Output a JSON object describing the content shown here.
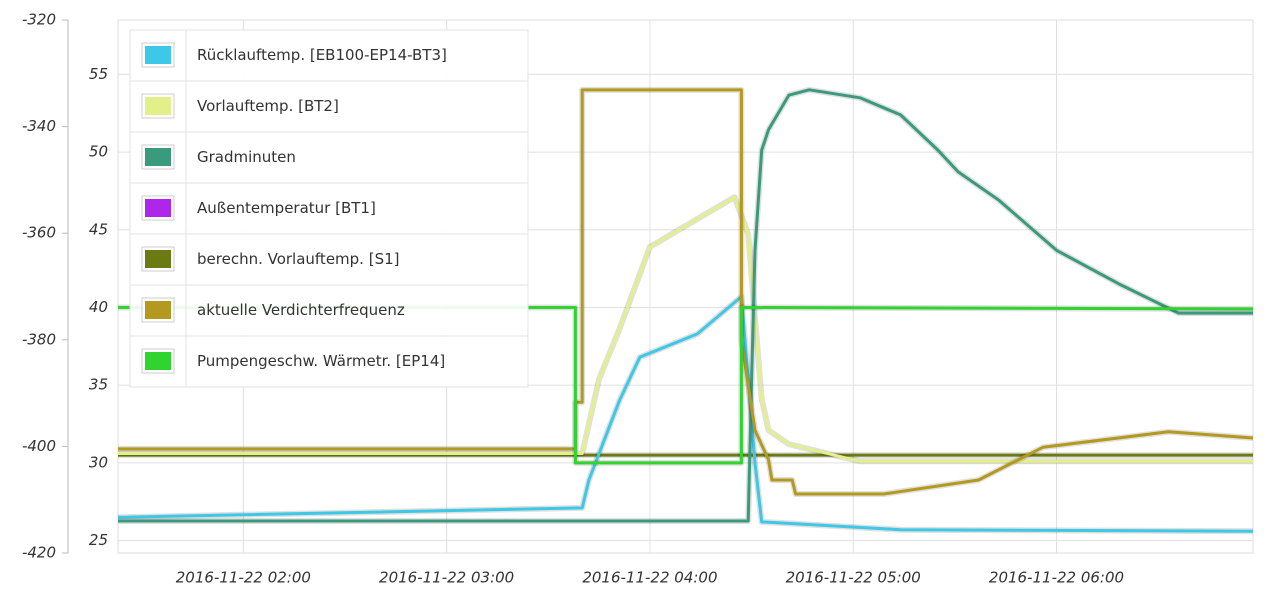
{
  "chart_data": {
    "type": "line",
    "xlim": [
      "2016-11-22 01:23",
      "2016-11-22 06:58"
    ],
    "xticks": [
      "2016-11-22 02:00",
      "2016-11-22 03:00",
      "2016-11-22 04:00",
      "2016-11-22 05:00",
      "2016-11-22 06:00"
    ],
    "ylim": [
      24.2,
      58.5
    ],
    "yticks": [
      25,
      30,
      35,
      40,
      45,
      50,
      55
    ],
    "y2lim": [
      -420,
      -320
    ],
    "y2ticks": [
      -420,
      -400,
      -380,
      -360,
      -340,
      -320
    ],
    "grid": true,
    "legend": "top-left",
    "series": [
      {
        "name": "Rücklauftemp. [EB100-EP14-BT3]",
        "color": "#3cc8e6",
        "x": [
          "2016-11-22 01:23",
          "2016-11-22 03:40",
          "2016-11-22 03:42",
          "2016-11-22 03:51",
          "2016-11-22 03:57",
          "2016-11-22 04:14",
          "2016-11-22 04:27",
          "2016-11-22 04:31",
          "2016-11-22 04:33",
          "2016-11-22 05:14",
          "2016-11-22 06:58"
        ],
        "values": [
          26.5,
          27.1,
          28.9,
          34.0,
          36.8,
          38.3,
          40.7,
          30.0,
          26.2,
          25.7,
          25.6
        ]
      },
      {
        "name": "Vorlauftemp. [BT2]",
        "color": "#e3f08a",
        "x": [
          "2016-11-22 01:23",
          "2016-11-22 03:40",
          "2016-11-22 03:45",
          "2016-11-22 03:51",
          "2016-11-22 04:00",
          "2016-11-22 04:14",
          "2016-11-22 04:25",
          "2016-11-22 04:29",
          "2016-11-22 04:33",
          "2016-11-22 04:35",
          "2016-11-22 04:41",
          "2016-11-22 05:02",
          "2016-11-22 06:58"
        ],
        "values": [
          30.6,
          30.6,
          35.4,
          38.6,
          43.9,
          45.7,
          47.1,
          44.7,
          34.1,
          32.1,
          31.2,
          30.1,
          30.1
        ]
      },
      {
        "name": "Gradminuten",
        "color": "#3a9a7c",
        "axis": "y2",
        "x": [
          "2016-11-22 01:23",
          "2016-11-22 04:29",
          "2016-11-22 04:30",
          "2016-11-22 04:31",
          "2016-11-22 04:33",
          "2016-11-22 04:35",
          "2016-11-22 04:41",
          "2016-11-22 04:47",
          "2016-11-22 05:02",
          "2016-11-22 05:14",
          "2016-11-22 05:25",
          "2016-11-22 05:31",
          "2016-11-22 05:43",
          "2016-11-22 06:00",
          "2016-11-22 06:19",
          "2016-11-22 06:36",
          "2016-11-22 06:58"
        ],
        "values": [
          -414,
          -414,
          -387.5,
          -363.2,
          -344.4,
          -340.6,
          -334.1,
          -333.1,
          -334.6,
          -337.8,
          -344.4,
          -348.5,
          -353.8,
          -363.2,
          -369.7,
          -375,
          -375
        ]
      },
      {
        "name": "Außentemperatur [BT1]",
        "color": "#b026e8",
        "x": [
          "2016-11-22 01:23",
          "2016-11-22 06:58"
        ],
        "values": [
          null,
          null
        ]
      },
      {
        "name": "berechn. Vorlauftemp. [S1]",
        "color": "#6b7a12",
        "x": [
          "2016-11-22 01:23",
          "2016-11-22 06:58"
        ],
        "values": [
          30.5,
          30.5
        ]
      },
      {
        "name": "aktuelle Verdichterfrequenz",
        "color": "#b39a1e",
        "x": [
          "2016-11-22 01:23",
          "2016-11-22 03:38",
          "2016-11-22 03:38",
          "2016-11-22 03:40",
          "2016-11-22 03:40",
          "2016-11-22 04:27",
          "2016-11-22 04:27",
          "2016-11-22 04:31",
          "2016-11-22 04:35",
          "2016-11-22 04:36",
          "2016-11-22 04:42",
          "2016-11-22 04:43",
          "2016-11-22 05:09",
          "2016-11-22 05:37",
          "2016-11-22 05:56",
          "2016-11-22 06:33",
          "2016-11-22 06:58"
        ],
        "values": [
          30.9,
          30.9,
          33.9,
          33.9,
          54.0,
          54.0,
          37.9,
          32.1,
          30.2,
          28.9,
          28.9,
          28.0,
          28.0,
          28.9,
          31.0,
          32.0,
          31.6
        ]
      },
      {
        "name": "Pumpengeschw. Wärmetr. [EP14]",
        "color": "#2fd42f",
        "x": [
          "2016-11-22 01:23",
          "2016-11-22 03:38",
          "2016-11-22 03:38",
          "2016-11-22 04:27",
          "2016-11-22 04:27",
          "2016-11-22 06:58"
        ],
        "values": [
          40.0,
          40.0,
          30.0,
          30.0,
          40.0,
          39.9
        ]
      }
    ]
  }
}
